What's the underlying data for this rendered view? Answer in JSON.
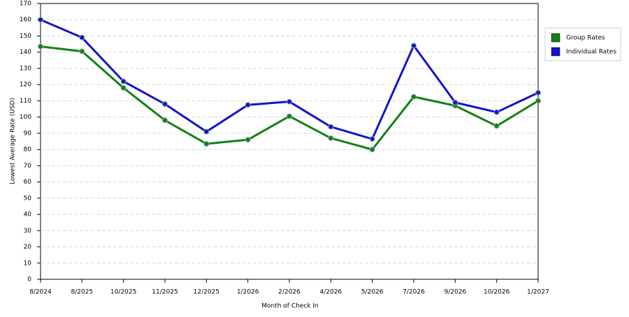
{
  "chart_data": {
    "type": "line",
    "x_label": "Month of Check In",
    "y_label": "Lowest Average Rate (USD)",
    "categories": [
      "8/2024",
      "8/2025",
      "10/2025",
      "11/2025",
      "12/2025",
      "1/2026",
      "2/2026",
      "4/2026",
      "5/2026",
      "7/2026",
      "9/2026",
      "10/2026",
      "1/2027"
    ],
    "series": [
      {
        "name": "Group Rates",
        "color": "#138013",
        "values": [
          143.5,
          140.5,
          118,
          98,
          83.5,
          86,
          100.5,
          87,
          80,
          112.5,
          107,
          94.5,
          110
        ]
      },
      {
        "name": "Individual Rates",
        "color": "#1414c8",
        "values": [
          160,
          149,
          122,
          108,
          91,
          107.5,
          109.5,
          94,
          86.5,
          144,
          109,
          103,
          115
        ]
      }
    ],
    "ylim": [
      0,
      170
    ],
    "yticks": [
      0,
      10,
      20,
      30,
      40,
      50,
      60,
      70,
      80,
      90,
      100,
      110,
      120,
      130,
      140,
      150,
      160,
      170
    ],
    "grid": true,
    "legend": "right"
  }
}
